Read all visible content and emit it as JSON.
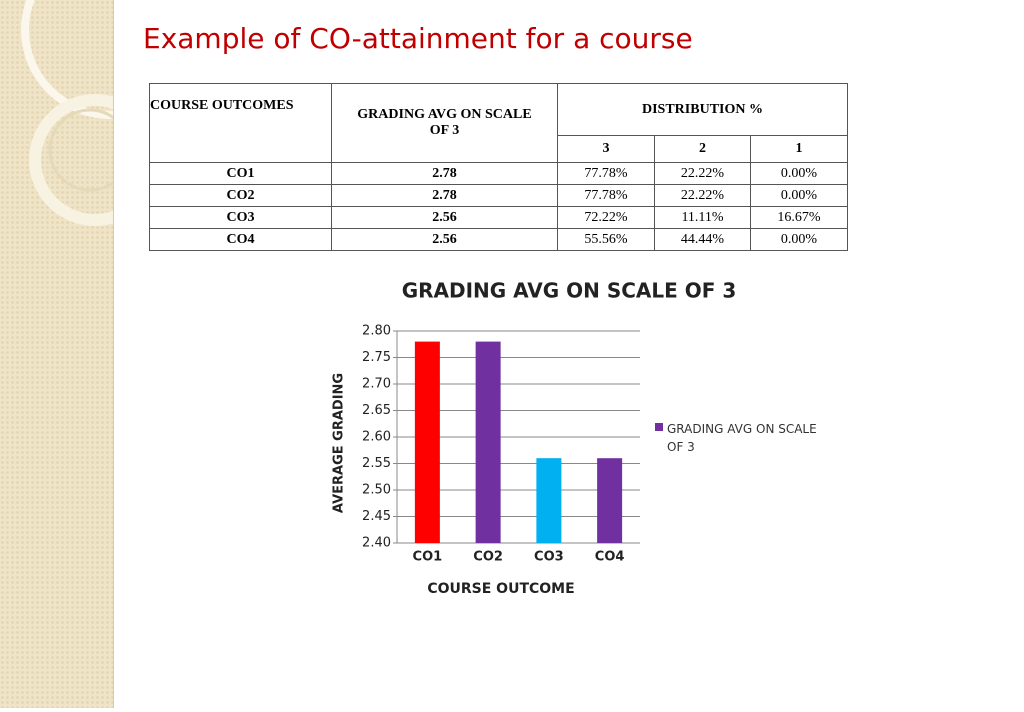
{
  "title": "Example of CO-attainment for a course",
  "table": {
    "header": [
      "COURSE OUTCOMES",
      "GRADING AVG  ON SCALE OF 3",
      "DISTRIBUTION  %"
    ],
    "subheader": [
      "3",
      "2",
      "1"
    ],
    "rows": [
      [
        "CO1",
        "2.78",
        "77.78%",
        "22.22%",
        "0.00%"
      ],
      [
        "CO2",
        "2.78",
        "77.78%",
        "22.22%",
        "0.00%"
      ],
      [
        "CO3",
        "2.56",
        "72.22%",
        "11.11%",
        "16.67%"
      ],
      [
        "CO4",
        "2.56",
        "55.56%",
        "44.44%",
        "0.00%"
      ]
    ]
  },
  "chart_data": {
    "type": "bar",
    "title": "GRADING AVG  ON SCALE OF 3",
    "x_label": "COURSE OUTCOME",
    "y_label": "AVERAGE GRADING",
    "categories": [
      "CO1",
      "CO2",
      "CO3",
      "CO4"
    ],
    "series": [
      {
        "name": "GRADING AVG  ON SCALE OF 3",
        "color": "#7030a0",
        "point_colors": [
          "#ff0000",
          "#7030a0",
          "#00b0f0",
          "#7030a0"
        ],
        "values": [
          2.78,
          2.78,
          2.56,
          2.56
        ]
      }
    ],
    "ylim": [
      2.4,
      2.8
    ],
    "yticks": [
      {
        "value": 2.4,
        "label": "2.40"
      },
      {
        "value": 2.45,
        "label": "2.45"
      },
      {
        "value": 2.5,
        "label": "2.50"
      },
      {
        "value": 2.55,
        "label": "2.55"
      },
      {
        "value": 2.6,
        "label": "2.60"
      },
      {
        "value": 2.65,
        "label": "2.65"
      },
      {
        "value": 2.7,
        "label": "2.70"
      },
      {
        "value": 2.75,
        "label": "2.75"
      },
      {
        "value": 2.8,
        "label": "2.80"
      }
    ],
    "grid": true,
    "legend": "right"
  }
}
